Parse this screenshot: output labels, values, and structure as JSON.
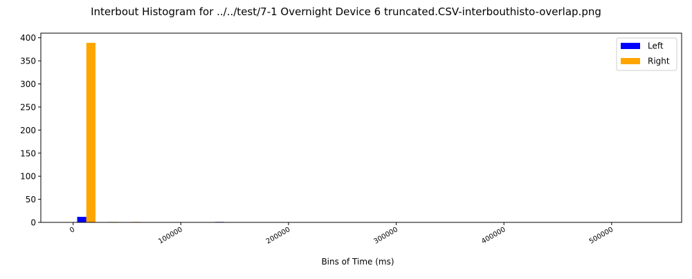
{
  "chart_data": {
    "type": "bar",
    "title": "Interbout Histogram for ../../test/7-1 Overnight Device 6 truncated.CSV-interbouthisto-overlap.png",
    "xlabel": "Bins of Time (ms)",
    "ylabel": "",
    "xlim": [
      -30000,
      565000
    ],
    "ylim": [
      0,
      410
    ],
    "x_ticks": [
      0,
      100000,
      200000,
      300000,
      400000,
      500000
    ],
    "x_tick_labels": [
      "0",
      "100000",
      "200000",
      "300000",
      "400000",
      "500000"
    ],
    "y_ticks": [
      0,
      50,
      100,
      150,
      200,
      250,
      300,
      350,
      400
    ],
    "y_tick_labels": [
      "0",
      "50",
      "100",
      "150",
      "200",
      "250",
      "300",
      "350",
      "400"
    ],
    "bar_width": 8500,
    "legend_position": "top-right",
    "series": [
      {
        "name": "Left",
        "color": "#0000ff",
        "points": [
          {
            "x": 8000,
            "y": 12
          },
          {
            "x": 136000,
            "y": 1
          }
        ]
      },
      {
        "name": "Right",
        "color": "#ffa500",
        "points": [
          {
            "x": 16500,
            "y": 389
          },
          {
            "x": 37500,
            "y": 1
          },
          {
            "x": 58500,
            "y": 1
          }
        ]
      }
    ]
  }
}
